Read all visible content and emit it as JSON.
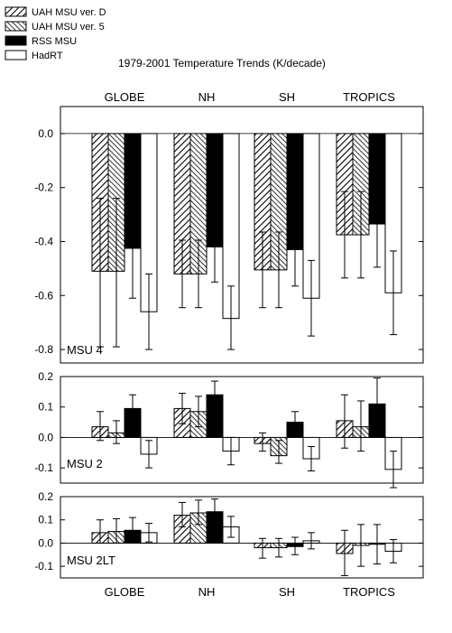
{
  "chart_data": [
    {
      "type": "bar",
      "title": "1979-2001 Temperature Trends (K/decade)",
      "panel_label": "MSU 4",
      "categories": [
        "GLOBE",
        "NH",
        "SH",
        "TROPICS"
      ],
      "ylim": [
        -0.85,
        0.1
      ],
      "yticks": [
        0.0,
        -0.2,
        -0.4,
        -0.6,
        -0.8
      ],
      "ytick_labels": [
        "0.0",
        "-0.2",
        "-0.4",
        "-0.6",
        "-0.8"
      ],
      "grid": false,
      "legend_position": "top-left",
      "series": [
        {
          "name": "UAH MSU ver. D",
          "values": [
            -0.51,
            -0.52,
            -0.505,
            -0.375
          ],
          "err_low": [
            -0.79,
            -0.645,
            -0.645,
            -0.535
          ],
          "err_high": [
            -0.24,
            -0.395,
            -0.365,
            -0.215
          ]
        },
        {
          "name": "UAH MSU ver. 5",
          "values": [
            -0.51,
            -0.52,
            -0.505,
            -0.375
          ],
          "err_low": [
            -0.79,
            -0.645,
            -0.645,
            -0.535
          ],
          "err_high": [
            -0.24,
            -0.395,
            -0.365,
            -0.215
          ]
        },
        {
          "name": "RSS MSU",
          "values": [
            -0.425,
            -0.42,
            -0.43,
            -0.335
          ],
          "err_low": [
            -0.61,
            -0.55,
            -0.565,
            -0.495
          ],
          "err_high": [
            -0.24,
            -0.29,
            -0.295,
            -0.175
          ]
        },
        {
          "name": "HadRT",
          "values": [
            -0.66,
            -0.685,
            -0.61,
            -0.59
          ],
          "err_low": [
            -0.8,
            -0.8,
            -0.75,
            -0.745
          ],
          "err_high": [
            -0.52,
            -0.565,
            -0.47,
            -0.435
          ]
        }
      ]
    },
    {
      "type": "bar",
      "panel_label": "MSU 2",
      "categories": [
        "GLOBE",
        "NH",
        "SH",
        "TROPICS"
      ],
      "ylim": [
        -0.15,
        0.2
      ],
      "yticks": [
        0.2,
        0.1,
        0.0,
        -0.1
      ],
      "ytick_labels": [
        "0.2",
        "0.1",
        "0.0",
        "-0.1"
      ],
      "series": [
        {
          "name": "UAH MSU ver. D",
          "values": [
            0.035,
            0.095,
            -0.02,
            0.055
          ],
          "err_low": [
            -0.01,
            0.045,
            -0.045,
            -0.035
          ],
          "err_high": [
            0.085,
            0.145,
            0.015,
            0.14
          ]
        },
        {
          "name": "UAH MSU ver. 5",
          "values": [
            0.015,
            0.085,
            -0.06,
            0.035
          ],
          "err_low": [
            -0.02,
            0.035,
            -0.085,
            -0.045
          ],
          "err_high": [
            0.055,
            0.135,
            -0.01,
            0.12
          ]
        },
        {
          "name": "RSS MSU",
          "values": [
            0.095,
            0.14,
            0.05,
            0.11
          ],
          "err_low": [
            0.055,
            0.095,
            0.015,
            0.02
          ],
          "err_high": [
            0.14,
            0.185,
            0.085,
            0.195
          ]
        },
        {
          "name": "HadRT",
          "values": [
            -0.055,
            -0.045,
            -0.07,
            -0.105
          ],
          "err_low": [
            -0.1,
            -0.09,
            -0.11,
            -0.165
          ],
          "err_high": [
            -0.01,
            0.0,
            -0.03,
            -0.045
          ]
        }
      ]
    },
    {
      "type": "bar",
      "panel_label": "MSU 2LT",
      "categories": [
        "GLOBE",
        "NH",
        "SH",
        "TROPICS"
      ],
      "ylim": [
        -0.15,
        0.2
      ],
      "yticks": [
        0.2,
        0.1,
        0.0,
        -0.1
      ],
      "ytick_labels": [
        "0.2",
        "0.1",
        "0.0",
        "-0.1"
      ],
      "series": [
        {
          "name": "UAH MSU ver. D",
          "values": [
            0.045,
            0.12,
            -0.02,
            -0.045
          ],
          "err_low": [
            0.0,
            0.07,
            -0.065,
            -0.14
          ],
          "err_high": [
            0.1,
            0.175,
            0.02,
            0.055
          ]
        },
        {
          "name": "UAH MSU ver. 5",
          "values": [
            0.05,
            0.13,
            -0.02,
            -0.01
          ],
          "err_low": [
            0.0,
            0.08,
            -0.06,
            -0.1
          ],
          "err_high": [
            0.105,
            0.185,
            0.02,
            0.08
          ]
        },
        {
          "name": "RSS MSU",
          "values": [
            0.055,
            0.135,
            -0.015,
            -0.005
          ],
          "err_low": [
            0.0,
            0.085,
            -0.05,
            -0.09
          ],
          "err_high": [
            0.11,
            0.19,
            0.025,
            0.08
          ]
        },
        {
          "name": "HadRT",
          "values": [
            0.045,
            0.07,
            0.01,
            -0.035
          ],
          "err_low": [
            0.005,
            0.025,
            -0.025,
            -0.085
          ],
          "err_high": [
            0.085,
            0.115,
            0.045,
            0.015
          ]
        }
      ]
    }
  ],
  "colors": {
    "background": "#ffffff",
    "ink": "#000000",
    "rss_fill": "#000000",
    "hadrt_fill": "#ffffff"
  }
}
